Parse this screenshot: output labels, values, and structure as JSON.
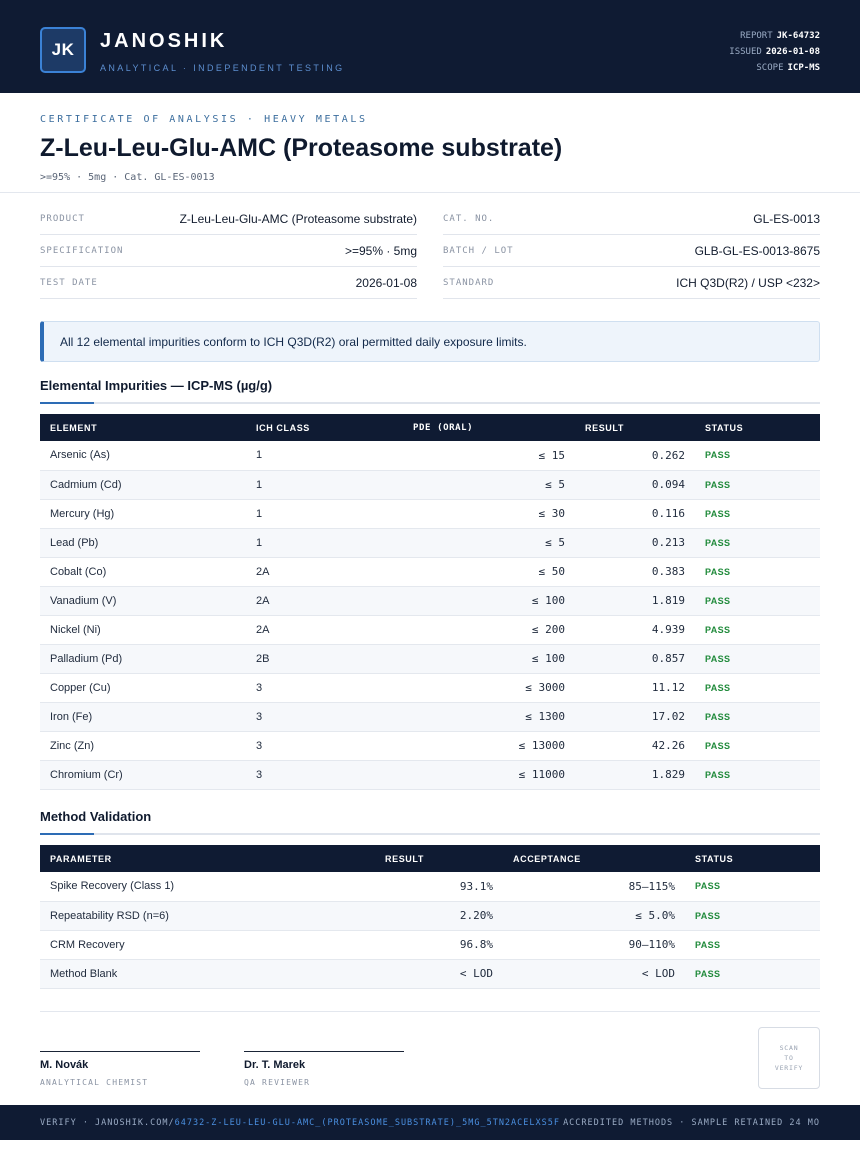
{
  "header": {
    "logo": "JK",
    "brand": "JANOSHIK",
    "tagline": "ANALYTICAL · INDEPENDENT TESTING",
    "report_label": "REPORT",
    "report_value": "JK-64732",
    "issued_label": "ISSUED",
    "issued_value": "2026-01-08",
    "scope_label": "SCOPE",
    "scope_value": "ICP-MS"
  },
  "doc": {
    "eyebrow": "CERTIFICATE OF ANALYSIS · HEAVY METALS",
    "title": "Z-Leu-Leu-Glu-AMC (Proteasome substrate)",
    "subtitle": ">=95% · 5mg  ·  Cat. GL-ES-0013"
  },
  "info": {
    "product_label": "PRODUCT",
    "product_value": "Z-Leu-Leu-Glu-AMC (Proteasome substrate)",
    "spec_label": "SPECIFICATION",
    "spec_value": ">=95% · 5mg",
    "date_label": "TEST DATE",
    "date_value": "2026-01-08",
    "cat_label": "CAT. NO.",
    "cat_value": "GL-ES-0013",
    "batch_label": "BATCH / LOT",
    "batch_value": "GLB-GL-ES-0013-8675",
    "standard_label": "STANDARD",
    "standard_value": "ICH Q3D(R2) / USP <232>"
  },
  "notice": "All 12 elemental impurities conform to ICH Q3D(R2) oral permitted daily exposure limits.",
  "impurities": {
    "title": "Elemental Impurities — ICP-MS (µg/g)",
    "headers": [
      "ELEMENT",
      "ICH CLASS",
      "PDE (ORAL)",
      "RESULT",
      "STATUS"
    ],
    "rows": [
      {
        "element": "Arsenic (As)",
        "class": "1",
        "pde": "≤ 15",
        "result": "0.262",
        "status": "PASS"
      },
      {
        "element": "Cadmium (Cd)",
        "class": "1",
        "pde": "≤ 5",
        "result": "0.094",
        "status": "PASS"
      },
      {
        "element": "Mercury (Hg)",
        "class": "1",
        "pde": "≤ 30",
        "result": "0.116",
        "status": "PASS"
      },
      {
        "element": "Lead (Pb)",
        "class": "1",
        "pde": "≤ 5",
        "result": "0.213",
        "status": "PASS"
      },
      {
        "element": "Cobalt (Co)",
        "class": "2A",
        "pde": "≤ 50",
        "result": "0.383",
        "status": "PASS"
      },
      {
        "element": "Vanadium (V)",
        "class": "2A",
        "pde": "≤ 100",
        "result": "1.819",
        "status": "PASS"
      },
      {
        "element": "Nickel (Ni)",
        "class": "2A",
        "pde": "≤ 200",
        "result": "4.939",
        "status": "PASS"
      },
      {
        "element": "Palladium (Pd)",
        "class": "2B",
        "pde": "≤ 100",
        "result": "0.857",
        "status": "PASS"
      },
      {
        "element": "Copper (Cu)",
        "class": "3",
        "pde": "≤ 3000",
        "result": "11.12",
        "status": "PASS"
      },
      {
        "element": "Iron (Fe)",
        "class": "3",
        "pde": "≤ 1300",
        "result": "17.02",
        "status": "PASS"
      },
      {
        "element": "Zinc (Zn)",
        "class": "3",
        "pde": "≤ 13000",
        "result": "42.26",
        "status": "PASS"
      },
      {
        "element": "Chromium (Cr)",
        "class": "3",
        "pde": "≤ 11000",
        "result": "1.829",
        "status": "PASS"
      }
    ]
  },
  "validation": {
    "title": "Method Validation",
    "headers": [
      "PARAMETER",
      "RESULT",
      "ACCEPTANCE",
      "STATUS"
    ],
    "rows": [
      {
        "parameter": "Spike Recovery (Class 1)",
        "result": "93.1%",
        "acceptance": "85–115%",
        "status": "PASS"
      },
      {
        "parameter": "Repeatability RSD (n=6)",
        "result": "2.20%",
        "acceptance": "≤ 5.0%",
        "status": "PASS"
      },
      {
        "parameter": "CRM Recovery",
        "result": "96.8%",
        "acceptance": "90–110%",
        "status": "PASS"
      },
      {
        "parameter": "Method Blank",
        "result": "< LOD",
        "acceptance": "< LOD",
        "status": "PASS"
      }
    ]
  },
  "signatures": [
    {
      "name": "M. Novák",
      "role": "ANALYTICAL CHEMIST"
    },
    {
      "name": "Dr. T. Marek",
      "role": "QA REVIEWER"
    }
  ],
  "qr": {
    "l1": "SCAN",
    "l2": "TO",
    "l3": "VERIFY"
  },
  "footer": {
    "verify_prefix": "VERIFY · JANOSHIK.COM/",
    "verify_link": "64732-Z-LEU-LEU-GLU-AMC_(PROTEASOME_SUBSTRATE)_5MG_5TN2ACELXS5F",
    "right": "ACCREDITED METHODS · SAMPLE RETAINED 24 MO"
  }
}
